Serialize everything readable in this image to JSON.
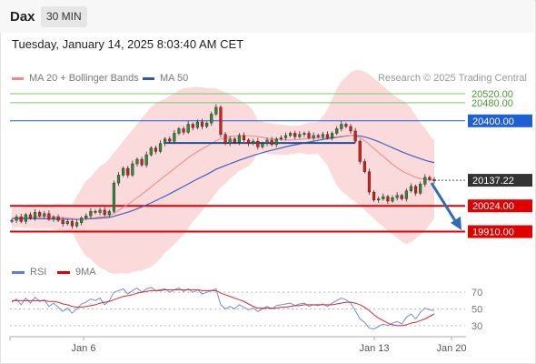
{
  "header": {
    "title": "Dax",
    "timeframe": "30 MIN",
    "datetime": "Tuesday, January 14, 2025 8:03:40 AM CET"
  },
  "legend": {
    "ma20": "MA 20 + Bollinger Bands",
    "ma50": "MA 50",
    "credit": "Research © 2025 Trading Central"
  },
  "rsi_legend": {
    "rsi": "RSI",
    "ma9": "9MA"
  },
  "colors": {
    "bull": "#2e8b3a",
    "bear": "#d81b1b",
    "ma20": "#e88a8a",
    "ma50": "#3e63c4",
    "bollinger": "#f9d3d3",
    "resistance_green": "#7cc86a",
    "level_blue": "#1e5fd6",
    "support_red": "#e00000",
    "last_price": "#333333",
    "arrow": "#2f6db3"
  },
  "chart_data": [
    {
      "type": "line",
      "title": "",
      "instrument": "Dax",
      "timeframe": "30 MIN",
      "x_ticks": [
        "Jan 6",
        "Jan 13",
        "Jan 20"
      ],
      "y_range": [
        19880,
        20540
      ],
      "grid": false,
      "legend_position": "top",
      "levels": [
        {
          "value": 20520.0,
          "label": "20520.00",
          "kind": "resistance"
        },
        {
          "value": 20480.0,
          "label": "20480.00",
          "kind": "resistance"
        },
        {
          "value": 20400.0,
          "label": "20400.00",
          "kind": "pivot"
        },
        {
          "value": 20024.0,
          "label": "20024.00",
          "kind": "support"
        },
        {
          "value": 19910.0,
          "label": "19910.00",
          "kind": "support"
        }
      ],
      "last_price": {
        "value": 20137.22,
        "label": "20137.22"
      },
      "close_series": [
        19960,
        19975,
        19955,
        19985,
        19970,
        19995,
        19980,
        19990,
        19965,
        19975,
        19960,
        19945,
        19955,
        19935,
        19950,
        19970,
        19980,
        20000,
        19995,
        20005,
        19985,
        20000,
        20125,
        20160,
        20190,
        20160,
        20210,
        20230,
        20205,
        20250,
        20280,
        20265,
        20300,
        20320,
        20310,
        20345,
        20365,
        20350,
        20385,
        20370,
        20395,
        20375,
        20390,
        20430,
        20460,
        20340,
        20300,
        20320,
        20305,
        20335,
        20315,
        20300,
        20310,
        20285,
        20300,
        20315,
        20295,
        20320,
        20325,
        20335,
        20345,
        20330,
        20340,
        20345,
        20325,
        20335,
        20330,
        20340,
        20325,
        20345,
        20365,
        20385,
        20375,
        20355,
        20310,
        20220,
        20175,
        20085,
        20050,
        20055,
        20065,
        20045,
        20060,
        20070,
        20055,
        20090,
        20110,
        20080,
        20120,
        20150,
        20140,
        20135
      ],
      "series": [
        {
          "name": "MA 20",
          "values": [
            19970,
            19972,
            19972,
            19973,
            19974,
            19975,
            19976,
            19977,
            19976,
            19976,
            19974,
            19972,
            19970,
            19968,
            19967,
            19967,
            19968,
            19970,
            19972,
            19975,
            19977,
            19980,
            19991,
            20004,
            20018,
            20030,
            20045,
            20061,
            20075,
            20091,
            20108,
            20124,
            20140,
            20157,
            20172,
            20188,
            20205,
            20220,
            20236,
            20251,
            20264,
            20276,
            20287,
            20299,
            20312,
            20320,
            20325,
            20330,
            20333,
            20335,
            20335,
            20334,
            20333,
            20330,
            20327,
            20323,
            20320,
            20318,
            20316,
            20315,
            20315,
            20316,
            20318,
            20320,
            20322,
            20323,
            20324,
            20325,
            20326,
            20327,
            20329,
            20332,
            20334,
            20335,
            20333,
            20325,
            20312,
            20296,
            20278,
            20260,
            20243,
            20225,
            20208,
            20193,
            20179,
            20168,
            20160,
            20150,
            20145,
            20141,
            20140,
            20139
          ]
        },
        {
          "name": "MA 50",
          "values": [
            19968,
            19968,
            19968,
            19967,
            19967,
            19967,
            19967,
            19967,
            19966,
            19966,
            19966,
            19965,
            19965,
            19965,
            19965,
            19965,
            19966,
            19967,
            19968,
            19970,
            19971,
            19973,
            19978,
            19984,
            19990,
            19996,
            20003,
            20011,
            20019,
            20028,
            20037,
            20047,
            20057,
            20067,
            20077,
            20088,
            20099,
            20110,
            20121,
            20132,
            20143,
            20153,
            20163,
            20174,
            20186,
            20194,
            20202,
            20210,
            20218,
            20226,
            20233,
            20240,
            20247,
            20253,
            20259,
            20265,
            20270,
            20275,
            20280,
            20285,
            20290,
            20294,
            20298,
            20302,
            20306,
            20310,
            20314,
            20318,
            20321,
            20324,
            20327,
            20330,
            20333,
            20335,
            20335,
            20333,
            20329,
            20323,
            20316,
            20308,
            20299,
            20290,
            20281,
            20272,
            20263,
            20255,
            20247,
            20240,
            20233,
            20226,
            20220,
            20215
          ]
        }
      ]
    },
    {
      "type": "line",
      "title": "",
      "y_ticks": [
        70,
        50,
        30
      ],
      "y_range": [
        20,
        80
      ],
      "x_ticks": [
        "Jan 6",
        "Jan 13",
        "Jan 20"
      ],
      "series": [
        {
          "name": "RSI",
          "values": [
            58,
            62,
            55,
            63,
            57,
            64,
            59,
            61,
            53,
            57,
            52,
            47,
            51,
            45,
            50,
            56,
            58,
            62,
            60,
            63,
            55,
            60,
            70,
            72,
            74,
            68,
            72,
            75,
            70,
            74,
            76,
            72,
            73,
            74,
            70,
            73,
            75,
            71,
            74,
            70,
            73,
            68,
            70,
            72,
            74,
            55,
            50,
            53,
            50,
            55,
            52,
            49,
            51,
            47,
            50,
            53,
            50,
            54,
            55,
            56,
            57,
            54,
            56,
            57,
            53,
            55,
            54,
            56,
            53,
            57,
            60,
            63,
            61,
            57,
            48,
            38,
            34,
            27,
            26,
            29,
            32,
            30,
            33,
            35,
            32,
            40,
            44,
            38,
            46,
            51,
            49,
            48
          ]
        },
        {
          "name": "9MA",
          "values": [
            60,
            60,
            60,
            60,
            60,
            60,
            60,
            60,
            59,
            59,
            58,
            56,
            55,
            53,
            52,
            52,
            53,
            54,
            55,
            57,
            58,
            59,
            61,
            63,
            65,
            66,
            67,
            69,
            70,
            71,
            72,
            72,
            72,
            73,
            73,
            73,
            73,
            73,
            73,
            73,
            73,
            72,
            72,
            72,
            72,
            69,
            67,
            65,
            63,
            61,
            59,
            56,
            53,
            51,
            51,
            51,
            51,
            51,
            52,
            52,
            53,
            54,
            54,
            55,
            55,
            55,
            55,
            55,
            55,
            55,
            56,
            57,
            58,
            58,
            57,
            55,
            52,
            48,
            43,
            39,
            36,
            33,
            31,
            30,
            30,
            31,
            33,
            34,
            36,
            38,
            41,
            44
          ]
        }
      ]
    }
  ]
}
